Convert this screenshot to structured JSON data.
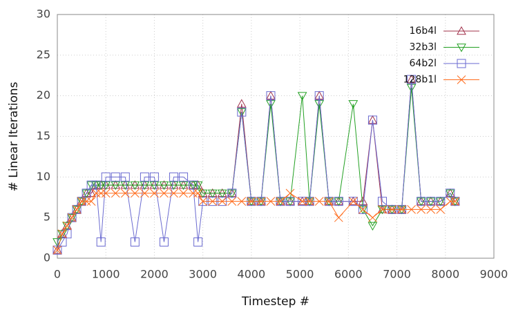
{
  "chart_data": {
    "type": "line",
    "xlabel": "Timestep #",
    "ylabel": "# Linear Iterations",
    "x": [
      0,
      100,
      200,
      300,
      400,
      500,
      600,
      700,
      800,
      900,
      1000,
      1200,
      1400,
      1600,
      1800,
      2000,
      2200,
      2400,
      2600,
      2800,
      2900,
      3000,
      3200,
      3400,
      3600,
      3800,
      4000,
      4200,
      4400,
      4600,
      4800,
      5050,
      5200,
      5400,
      5600,
      5800,
      6100,
      6300,
      6500,
      6700,
      6900,
      7100,
      7300,
      7500,
      7700,
      7900,
      8100,
      8200
    ],
    "series": [
      {
        "name": "16b4l",
        "color": "#a0304a",
        "marker": "triangle-up",
        "values": [
          1,
          3,
          4,
          5,
          6,
          7,
          8,
          8,
          9,
          9,
          9,
          9,
          9,
          9,
          9,
          9,
          9,
          9,
          9,
          9,
          9,
          8,
          8,
          8,
          8,
          19,
          7,
          7,
          20,
          7,
          7,
          7,
          7,
          20,
          7,
          7,
          7,
          7,
          17,
          6,
          6,
          6,
          22,
          7,
          7,
          7,
          8,
          7
        ]
      },
      {
        "name": "32b3l",
        "color": "#22a022",
        "marker": "triangle-down",
        "values": [
          2,
          3,
          4,
          5,
          6,
          7,
          8,
          9,
          9,
          9,
          9,
          9,
          9,
          9,
          9,
          9,
          9,
          9,
          9,
          9,
          9,
          8,
          8,
          8,
          8,
          18,
          7,
          7,
          19,
          7,
          7,
          20,
          7,
          19,
          7,
          7,
          19,
          6,
          4,
          6,
          6,
          6,
          21,
          7,
          7,
          7,
          8,
          7
        ]
      },
      {
        "name": "64b2l",
        "color": "#6a6ad0",
        "marker": "square",
        "values": [
          1,
          2,
          3,
          5,
          6,
          7,
          8,
          9,
          9,
          2,
          10,
          10,
          10,
          2,
          10,
          10,
          2,
          10,
          10,
          9,
          2,
          7,
          7,
          7,
          8,
          18,
          7,
          7,
          20,
          7,
          7,
          7,
          7,
          20,
          7,
          7,
          7,
          6,
          17,
          7,
          6,
          6,
          22,
          7,
          7,
          7,
          8,
          7
        ]
      },
      {
        "name": "128b1l",
        "color": "#ff6a1a",
        "marker": "cross",
        "values": [
          1,
          3,
          4,
          5,
          6,
          7,
          7,
          7,
          8,
          8,
          8,
          8,
          8,
          8,
          8,
          8,
          8,
          8,
          8,
          8,
          8,
          7,
          7,
          7,
          7,
          7,
          7,
          7,
          7,
          7,
          8,
          7,
          7,
          7,
          7,
          5,
          7,
          6,
          5,
          6,
          6,
          6,
          6,
          6,
          6,
          6,
          7,
          7
        ]
      }
    ],
    "xlim": [
      0,
      9000
    ],
    "xticks": [
      0,
      1000,
      2000,
      3000,
      4000,
      5000,
      6000,
      7000,
      8000,
      9000
    ],
    "ylim": [
      0,
      30
    ],
    "yticks": [
      0,
      5,
      10,
      15,
      20,
      25,
      30
    ],
    "grid": true,
    "legend": "top-right"
  }
}
